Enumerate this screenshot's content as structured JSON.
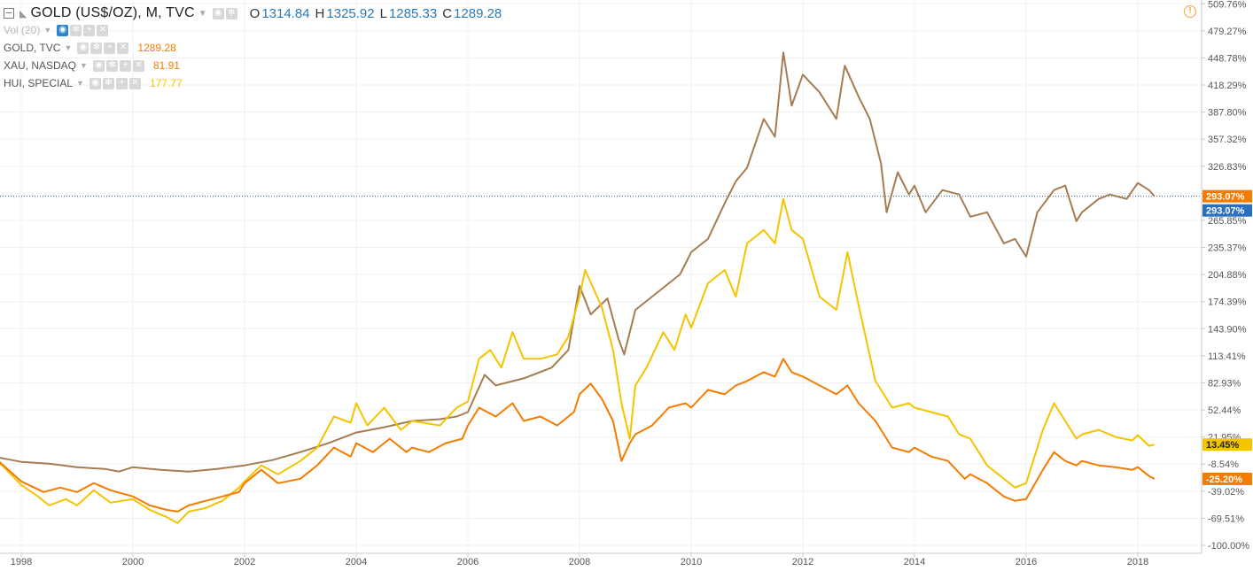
{
  "header": {
    "title": "GOLD (US$/OZ), M, TVC",
    "open_label": "O",
    "open": "1314.84",
    "high_label": "H",
    "high": "1325.92",
    "low_label": "L",
    "low": "1285.33",
    "close_label": "C",
    "close": "1289.28"
  },
  "legend": [
    {
      "name": "Vol (20)",
      "value": ""
    },
    {
      "name": "GOLD, TVC",
      "value": "1289.28",
      "color": "#f57c00"
    },
    {
      "name": "XAU, NASDAQ",
      "value": "81.91",
      "color": "#f57c00"
    },
    {
      "name": "HUI, SPECIAL",
      "value": "177.77",
      "color": "#f5c400"
    }
  ],
  "alert_icon": "!",
  "chart_data": {
    "type": "line",
    "ylabel": "",
    "xlabel": "",
    "ylim": [
      -100,
      510
    ],
    "y_scale": "percent change",
    "x_ticks": [
      "1998",
      "2000",
      "2002",
      "2004",
      "2006",
      "2008",
      "2010",
      "2012",
      "2014",
      "2016",
      "2018"
    ],
    "y_ticks": [
      "509.76%",
      "479.27%",
      "448.78%",
      "418.29%",
      "387.80%",
      "357.32%",
      "326.83%",
      "296.34%",
      "265.85%",
      "235.37%",
      "204.88%",
      "174.39%",
      "143.90%",
      "113.41%",
      "82.93%",
      "52.44%",
      "21.95%",
      "-8.54%",
      "-39.02%",
      "-69.51%",
      "-100.00%"
    ],
    "grid": true,
    "price_line": 293.07,
    "series": [
      {
        "color": "#a67c52",
        "last_label": "293.07%",
        "points": [
          [
            1997.5,
            0
          ],
          [
            1998.0,
            -6
          ],
          [
            1998.5,
            -8
          ],
          [
            1999.0,
            -12
          ],
          [
            1999.5,
            -14
          ],
          [
            1999.75,
            -17
          ],
          [
            2000.0,
            -12
          ],
          [
            2000.5,
            -15
          ],
          [
            2001.0,
            -17
          ],
          [
            2001.5,
            -14
          ],
          [
            2002.0,
            -10
          ],
          [
            2002.5,
            -4
          ],
          [
            2003.0,
            5
          ],
          [
            2003.5,
            15
          ],
          [
            2004.0,
            27
          ],
          [
            2004.5,
            33
          ],
          [
            2005.0,
            40
          ],
          [
            2005.5,
            42
          ],
          [
            2005.8,
            45
          ],
          [
            2006.0,
            50
          ],
          [
            2006.3,
            92
          ],
          [
            2006.5,
            80
          ],
          [
            2007.0,
            88
          ],
          [
            2007.5,
            100
          ],
          [
            2007.8,
            120
          ],
          [
            2008.0,
            192
          ],
          [
            2008.2,
            160
          ],
          [
            2008.5,
            178
          ],
          [
            2008.7,
            132
          ],
          [
            2008.8,
            115
          ],
          [
            2009.0,
            165
          ],
          [
            2009.5,
            190
          ],
          [
            2009.8,
            205
          ],
          [
            2010.0,
            230
          ],
          [
            2010.3,
            245
          ],
          [
            2010.6,
            285
          ],
          [
            2010.8,
            310
          ],
          [
            2011.0,
            325
          ],
          [
            2011.3,
            380
          ],
          [
            2011.5,
            360
          ],
          [
            2011.65,
            455
          ],
          [
            2011.8,
            395
          ],
          [
            2012.0,
            430
          ],
          [
            2012.3,
            410
          ],
          [
            2012.6,
            380
          ],
          [
            2012.75,
            440
          ],
          [
            2013.0,
            405
          ],
          [
            2013.2,
            380
          ],
          [
            2013.4,
            330
          ],
          [
            2013.5,
            275
          ],
          [
            2013.7,
            320
          ],
          [
            2013.9,
            295
          ],
          [
            2014.0,
            305
          ],
          [
            2014.2,
            275
          ],
          [
            2014.5,
            300
          ],
          [
            2014.8,
            295
          ],
          [
            2015.0,
            270
          ],
          [
            2015.3,
            275
          ],
          [
            2015.6,
            240
          ],
          [
            2015.8,
            245
          ],
          [
            2016.0,
            225
          ],
          [
            2016.2,
            275
          ],
          [
            2016.5,
            300
          ],
          [
            2016.7,
            305
          ],
          [
            2016.9,
            265
          ],
          [
            2017.0,
            275
          ],
          [
            2017.3,
            290
          ],
          [
            2017.5,
            295
          ],
          [
            2017.8,
            290
          ],
          [
            2018.0,
            308
          ],
          [
            2018.2,
            300
          ],
          [
            2018.3,
            293
          ]
        ]
      },
      {
        "color": "#f5c400",
        "last_label": "13.45%",
        "points": [
          [
            1997.5,
            0
          ],
          [
            1998.0,
            -32
          ],
          [
            1998.3,
            -45
          ],
          [
            1998.5,
            -55
          ],
          [
            1998.8,
            -48
          ],
          [
            1999.0,
            -55
          ],
          [
            1999.3,
            -38
          ],
          [
            1999.6,
            -52
          ],
          [
            2000.0,
            -48
          ],
          [
            2000.3,
            -60
          ],
          [
            2000.6,
            -68
          ],
          [
            2000.8,
            -75
          ],
          [
            2001.0,
            -62
          ],
          [
            2001.3,
            -58
          ],
          [
            2001.6,
            -50
          ],
          [
            2001.9,
            -35
          ],
          [
            2002.0,
            -28
          ],
          [
            2002.3,
            -10
          ],
          [
            2002.6,
            -20
          ],
          [
            2003.0,
            -5
          ],
          [
            2003.3,
            10
          ],
          [
            2003.6,
            45
          ],
          [
            2003.9,
            38
          ],
          [
            2004.0,
            60
          ],
          [
            2004.2,
            35
          ],
          [
            2004.5,
            55
          ],
          [
            2004.8,
            30
          ],
          [
            2005.0,
            40
          ],
          [
            2005.5,
            35
          ],
          [
            2005.8,
            55
          ],
          [
            2006.0,
            62
          ],
          [
            2006.2,
            110
          ],
          [
            2006.4,
            120
          ],
          [
            2006.6,
            100
          ],
          [
            2006.8,
            140
          ],
          [
            2007.0,
            110
          ],
          [
            2007.3,
            110
          ],
          [
            2007.6,
            115
          ],
          [
            2007.8,
            135
          ],
          [
            2008.0,
            180
          ],
          [
            2008.1,
            210
          ],
          [
            2008.4,
            168
          ],
          [
            2008.6,
            120
          ],
          [
            2008.75,
            60
          ],
          [
            2008.9,
            20
          ],
          [
            2009.0,
            80
          ],
          [
            2009.2,
            100
          ],
          [
            2009.5,
            140
          ],
          [
            2009.7,
            120
          ],
          [
            2009.9,
            160
          ],
          [
            2010.0,
            145
          ],
          [
            2010.3,
            195
          ],
          [
            2010.6,
            210
          ],
          [
            2010.8,
            180
          ],
          [
            2011.0,
            240
          ],
          [
            2011.3,
            255
          ],
          [
            2011.5,
            240
          ],
          [
            2011.65,
            290
          ],
          [
            2011.8,
            255
          ],
          [
            2012.0,
            245
          ],
          [
            2012.3,
            180
          ],
          [
            2012.6,
            165
          ],
          [
            2012.8,
            230
          ],
          [
            2013.0,
            170
          ],
          [
            2013.3,
            85
          ],
          [
            2013.6,
            55
          ],
          [
            2013.9,
            60
          ],
          [
            2014.0,
            55
          ],
          [
            2014.3,
            50
          ],
          [
            2014.6,
            45
          ],
          [
            2014.8,
            25
          ],
          [
            2015.0,
            20
          ],
          [
            2015.3,
            -10
          ],
          [
            2015.6,
            -25
          ],
          [
            2015.8,
            -35
          ],
          [
            2016.0,
            -30
          ],
          [
            2016.3,
            30
          ],
          [
            2016.5,
            60
          ],
          [
            2016.7,
            40
          ],
          [
            2016.9,
            20
          ],
          [
            2017.0,
            25
          ],
          [
            2017.3,
            30
          ],
          [
            2017.6,
            22
          ],
          [
            2017.9,
            18
          ],
          [
            2018.0,
            24
          ],
          [
            2018.2,
            12
          ],
          [
            2018.3,
            13.45
          ]
        ]
      },
      {
        "color": "#f57c00",
        "last_label": "-25.20%",
        "points": [
          [
            1997.5,
            0
          ],
          [
            1998.0,
            -28
          ],
          [
            1998.4,
            -40
          ],
          [
            1998.7,
            -35
          ],
          [
            1999.0,
            -40
          ],
          [
            1999.3,
            -30
          ],
          [
            1999.6,
            -38
          ],
          [
            2000.0,
            -45
          ],
          [
            2000.3,
            -55
          ],
          [
            2000.6,
            -60
          ],
          [
            2000.8,
            -62
          ],
          [
            2001.0,
            -55
          ],
          [
            2001.3,
            -50
          ],
          [
            2001.6,
            -45
          ],
          [
            2001.9,
            -40
          ],
          [
            2002.0,
            -30
          ],
          [
            2002.3,
            -15
          ],
          [
            2002.6,
            -30
          ],
          [
            2003.0,
            -25
          ],
          [
            2003.3,
            -10
          ],
          [
            2003.6,
            10
          ],
          [
            2003.9,
            0
          ],
          [
            2004.0,
            15
          ],
          [
            2004.3,
            5
          ],
          [
            2004.6,
            20
          ],
          [
            2004.9,
            5
          ],
          [
            2005.0,
            10
          ],
          [
            2005.3,
            5
          ],
          [
            2005.6,
            15
          ],
          [
            2005.9,
            20
          ],
          [
            2006.0,
            35
          ],
          [
            2006.2,
            55
          ],
          [
            2006.5,
            45
          ],
          [
            2006.8,
            60
          ],
          [
            2007.0,
            40
          ],
          [
            2007.3,
            45
          ],
          [
            2007.6,
            35
          ],
          [
            2007.9,
            50
          ],
          [
            2008.0,
            70
          ],
          [
            2008.2,
            82
          ],
          [
            2008.4,
            65
          ],
          [
            2008.6,
            40
          ],
          [
            2008.75,
            -5
          ],
          [
            2008.9,
            15
          ],
          [
            2009.0,
            25
          ],
          [
            2009.3,
            35
          ],
          [
            2009.6,
            55
          ],
          [
            2009.9,
            60
          ],
          [
            2010.0,
            55
          ],
          [
            2010.3,
            75
          ],
          [
            2010.6,
            70
          ],
          [
            2010.8,
            80
          ],
          [
            2011.0,
            85
          ],
          [
            2011.3,
            95
          ],
          [
            2011.5,
            90
          ],
          [
            2011.65,
            110
          ],
          [
            2011.8,
            95
          ],
          [
            2012.0,
            90
          ],
          [
            2012.3,
            80
          ],
          [
            2012.6,
            70
          ],
          [
            2012.8,
            80
          ],
          [
            2013.0,
            60
          ],
          [
            2013.3,
            40
          ],
          [
            2013.6,
            10
          ],
          [
            2013.9,
            5
          ],
          [
            2014.0,
            10
          ],
          [
            2014.3,
            0
          ],
          [
            2014.6,
            -5
          ],
          [
            2014.9,
            -25
          ],
          [
            2015.0,
            -20
          ],
          [
            2015.3,
            -30
          ],
          [
            2015.6,
            -45
          ],
          [
            2015.8,
            -50
          ],
          [
            2016.0,
            -48
          ],
          [
            2016.3,
            -15
          ],
          [
            2016.5,
            5
          ],
          [
            2016.7,
            -5
          ],
          [
            2016.9,
            -10
          ],
          [
            2017.0,
            -5
          ],
          [
            2017.3,
            -10
          ],
          [
            2017.6,
            -12
          ],
          [
            2017.9,
            -15
          ],
          [
            2018.0,
            -12
          ],
          [
            2018.2,
            -22
          ],
          [
            2018.3,
            -25.2
          ]
        ]
      }
    ]
  }
}
